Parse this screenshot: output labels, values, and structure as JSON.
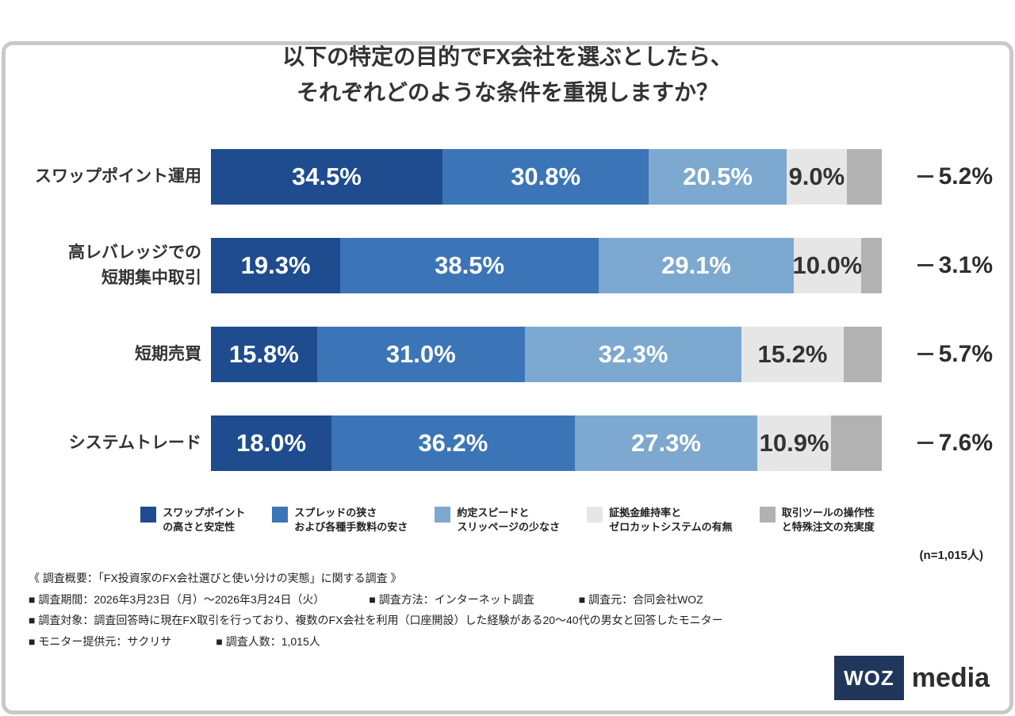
{
  "title": {
    "line1": "以下の特定の目的でFX会社を選ぶとしたら、",
    "line2": "それぞれどのような条件を重視しますか？"
  },
  "chart_data": {
    "type": "bar",
    "variant": "horizontal-stacked",
    "unit": "%",
    "xlim": [
      0,
      100
    ],
    "categories": [
      "スワップポイント運用",
      "高レバレッジでの\n短期集中取引",
      "短期売買",
      "システムトレード"
    ],
    "series": [
      {
        "name": "スワップポイントの高さと安定性",
        "legend_label": "スワップポイント\nの高さと安定性",
        "color": "#1e4c8f",
        "text_color": "#ffffff",
        "values": [
          34.5,
          19.3,
          15.8,
          18.0
        ]
      },
      {
        "name": "スプレッドの狭さおよび各種手数料の安さ",
        "legend_label": "スプレッドの狭さ\nおよび各種手数料の安さ",
        "color": "#3c75b7",
        "text_color": "#ffffff",
        "values": [
          30.8,
          38.5,
          31.0,
          36.2
        ]
      },
      {
        "name": "約定スピードとスリッページの少なさ",
        "legend_label": "約定スピードと\nスリッページの少なさ",
        "color": "#7da8cf",
        "text_color": "#ffffff",
        "values": [
          20.5,
          29.1,
          32.3,
          27.3
        ]
      },
      {
        "name": "証拠金維持率とゼロカットシステムの有無",
        "legend_label": "証拠金維持率と\nゼロカットシステムの有無",
        "color": "#e6e6e6",
        "text_color": "#333333",
        "values": [
          9.0,
          10.0,
          15.2,
          10.9
        ]
      },
      {
        "name": "取引ツールの操作性と特殊注文の充実度",
        "legend_label": "取引ツールの操作性\nと特殊注文の充実度",
        "color": "#b2b2b2",
        "text_color": "#333333",
        "label_outside": true,
        "values": [
          5.2,
          3.1,
          5.7,
          7.6
        ]
      }
    ],
    "legend_position": "bottom",
    "sample_note": "(n=1,015人)"
  },
  "survey": {
    "heading": "《 調査概要：「FX投資家のFX会社選びと使い分けの実態」に関する調査 》",
    "line1_items": [
      "■ 調査期間：2026年3月23日（月）〜2026年3月24日（火）",
      "■ 調査方法：インターネット調査",
      "■ 調査元：合同会社WOZ"
    ],
    "line2": "■ 調査対象：調査回答時に現在FX取引を行っており、複数のFX会社を利用（口座開設）した経験がある20〜40代の男女と回答したモニター",
    "line3_items": [
      "■ モニター提供元：サクリサ",
      "■ 調査人数：1,015人"
    ]
  },
  "logo": {
    "box_text": "WOZ",
    "suffix": "media",
    "box_color": "#20375b"
  }
}
